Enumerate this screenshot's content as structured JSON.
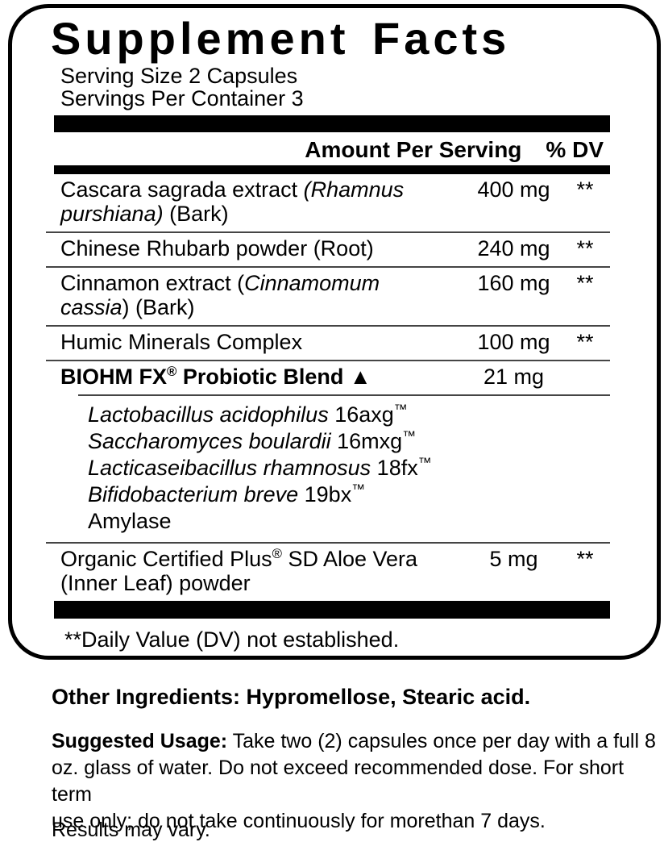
{
  "colors": {
    "text": "#000000",
    "divider_bar": "#000000",
    "row_separator": "#454545",
    "background": "#ffffff"
  },
  "panel": {
    "title": "Supplement Facts",
    "serving_size": "Serving Size 2 Capsules",
    "servings_per_container": "Servings Per Container 3",
    "header": {
      "amount_label": "Amount Per Serving",
      "dv_label": "% DV"
    },
    "rows": [
      {
        "name_segments": [
          {
            "t": "Cascara sagrada extract "
          },
          {
            "t": "(Rhamnus",
            "i": true
          },
          {
            "br": true
          },
          {
            "t": "purshiana)",
            "i": true
          },
          {
            "t": " (Bark)"
          }
        ],
        "amount": "400 mg",
        "dv": "**"
      },
      {
        "name_segments": [
          {
            "t": "Chinese Rhubarb powder (Root)"
          }
        ],
        "amount": "240 mg",
        "dv": "**"
      },
      {
        "name_segments": [
          {
            "t": "Cinnamon extract ("
          },
          {
            "t": "Cinnamomum",
            "i": true
          },
          {
            "br": true
          },
          {
            "t": "cassia",
            "i": true
          },
          {
            "t": ") (Bark)"
          }
        ],
        "amount": "160 mg",
        "dv": "**"
      },
      {
        "name_segments": [
          {
            "t": "Humic Minerals Complex"
          }
        ],
        "amount": "100 mg",
        "dv": "**"
      },
      {
        "name_segments": [
          {
            "t": "BIOHM FX"
          },
          {
            "t": "®",
            "sup": true
          },
          {
            "t": " Probiotic Blend "
          },
          {
            "t": "▲"
          }
        ],
        "bold": true,
        "amount": "21 mg",
        "dv": "",
        "sub_items": [
          [
            {
              "t": "Lactobacillus acidophilus",
              "i": true
            },
            {
              "t": " 16axg"
            },
            {
              "t": "™",
              "sup": true
            }
          ],
          [
            {
              "t": "Saccharomyces boulardii",
              "i": true
            },
            {
              "t": " 16mxg"
            },
            {
              "t": "™",
              "sup": true
            }
          ],
          [
            {
              "t": "Lacticaseibacillus rhamnosus",
              "i": true
            },
            {
              "t": " 18fx"
            },
            {
              "t": "™",
              "sup": true
            }
          ],
          [
            {
              "t": "Bifidobacterium breve",
              "i": true
            },
            {
              "t": " 19bx"
            },
            {
              "t": "™",
              "sup": true
            }
          ],
          [
            {
              "t": "Amylase"
            }
          ]
        ]
      },
      {
        "name_segments": [
          {
            "t": "Organic Certified Plus"
          },
          {
            "t": "®",
            "sup": true
          },
          {
            "t": " SD Aloe Vera"
          },
          {
            "br": true
          },
          {
            "t": "(Inner Leaf) powder"
          }
        ],
        "amount": "5 mg",
        "dv": "**"
      }
    ],
    "footnote": "**Daily Value (DV) not established."
  },
  "other_ingredients": {
    "label": "Other Ingredients:",
    "text": " Hypromellose, Stearic acid."
  },
  "suggested_usage": {
    "label": "Suggested Usage:",
    "lines": [
      "Take two (2) capsules once per day with a full 8",
      "oz. glass of water. Do not exceed recommended dose. For short term",
      "use only; do not take continuously for morethan 7 days."
    ]
  },
  "results_note": "Results may vary."
}
